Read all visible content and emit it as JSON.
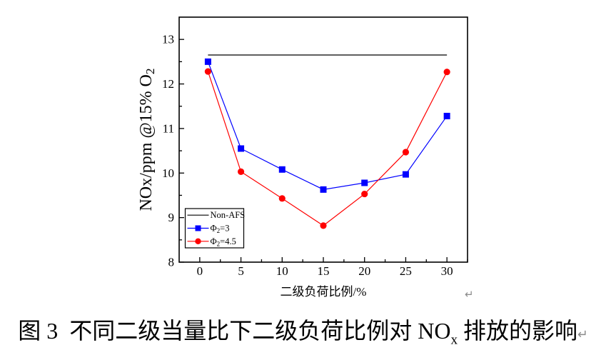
{
  "window": {
    "background": "#ffffff"
  },
  "chart_data": {
    "type": "line",
    "title": "",
    "xlabel": "二级负荷比例/%",
    "ylabel": "NOx/ppm @15% O2",
    "ylabel_parts": {
      "pre": "NOx/ppm @15% O",
      "sub": "2"
    },
    "xlim": [
      -2.5,
      32.5
    ],
    "ylim": [
      8,
      13.5
    ],
    "x_major_ticks": [
      0,
      5,
      10,
      15,
      20,
      25,
      30
    ],
    "x_minor_ticks": [
      2.5,
      7.5,
      12.5,
      17.5,
      22.5,
      27.5,
      32.5
    ],
    "y_major_ticks": [
      8,
      9,
      10,
      11,
      12,
      13
    ],
    "y_minor_ticks": [
      8.5,
      9.5,
      10.5,
      11.5,
      12.5
    ],
    "grid": false,
    "legend_position": "lower-left",
    "series": [
      {
        "name": "Non-AFS",
        "label_parts": {
          "pre": "Non-AFS",
          "sub": "",
          "post": ""
        },
        "color": "#000000",
        "marker": "none",
        "x": [
          1,
          30
        ],
        "y": [
          12.65,
          12.65
        ]
      },
      {
        "name": "Phi2=3",
        "label_parts": {
          "pre": "Φ",
          "sub": "2",
          "post": "=3"
        },
        "color": "#0000ff",
        "marker": "square",
        "x": [
          1,
          5,
          10,
          15,
          20,
          25,
          30
        ],
        "y": [
          12.5,
          10.55,
          10.08,
          9.63,
          9.78,
          9.97,
          11.28
        ]
      },
      {
        "name": "Phi2=4.5",
        "label_parts": {
          "pre": "Φ",
          "sub": "2",
          "post": "=4.5"
        },
        "color": "#ff0000",
        "marker": "circle",
        "x": [
          1,
          5,
          10,
          15,
          20,
          25,
          30
        ],
        "y": [
          12.28,
          10.03,
          9.43,
          8.82,
          9.53,
          10.47,
          12.27
        ]
      }
    ]
  },
  "caption": {
    "prefix": "图 3  不同二级当量比下二级负荷比例对 NO",
    "subscript": "x",
    "suffix": " 排放的影响"
  },
  "marks": {
    "paragraph_mark": "↵"
  }
}
